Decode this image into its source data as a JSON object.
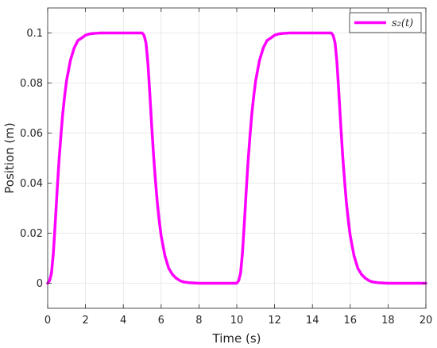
{
  "chart_data": {
    "type": "line",
    "title": "",
    "xlabel": "Time (s)",
    "ylabel": "Position (m)",
    "xlim": [
      0,
      20
    ],
    "ylim": [
      -0.01,
      0.11
    ],
    "xticks": [
      0,
      2,
      4,
      6,
      8,
      10,
      12,
      14,
      16,
      18,
      20
    ],
    "yticks": [
      0,
      0.02,
      0.04,
      0.06,
      0.08,
      0.1
    ],
    "ytick_labels": [
      "0",
      "0.02",
      "0.04",
      "0.06",
      "0.08",
      "0.1"
    ],
    "grid": true,
    "legend_position": "top-right",
    "series": [
      {
        "name": "s₂(t)",
        "color": "#ff00ff",
        "x": [
          0,
          0.1,
          0.2,
          0.3,
          0.4,
          0.5,
          0.6,
          0.7,
          0.8,
          0.9,
          1.0,
          1.2,
          1.4,
          1.6,
          1.8,
          2.0,
          2.2,
          2.4,
          2.6,
          2.8,
          3.0,
          3.5,
          4.0,
          4.5,
          5.0,
          5.1,
          5.2,
          5.3,
          5.4,
          5.5,
          5.6,
          5.7,
          5.8,
          5.9,
          6.0,
          6.2,
          6.4,
          6.6,
          6.8,
          7.0,
          7.2,
          7.5,
          8.0,
          9.0,
          10.0,
          10.1,
          10.2,
          10.3,
          10.4,
          10.5,
          10.6,
          10.7,
          10.8,
          10.9,
          11.0,
          11.2,
          11.4,
          11.6,
          11.8,
          12.0,
          12.2,
          12.4,
          12.6,
          12.8,
          13.0,
          13.5,
          14.0,
          14.5,
          15.0,
          15.1,
          15.2,
          15.3,
          15.4,
          15.5,
          15.6,
          15.7,
          15.8,
          15.9,
          16.0,
          16.2,
          16.4,
          16.6,
          16.8,
          17.0,
          17.2,
          17.5,
          18.0,
          19.0,
          20.0
        ],
        "y": [
          0,
          0.001,
          0.004,
          0.012,
          0.024,
          0.037,
          0.049,
          0.059,
          0.068,
          0.075,
          0.081,
          0.089,
          0.094,
          0.097,
          0.098,
          0.0991,
          0.0996,
          0.0998,
          0.0999,
          0.1,
          0.1,
          0.1,
          0.1,
          0.1,
          0.1,
          0.099,
          0.096,
          0.088,
          0.076,
          0.063,
          0.051,
          0.041,
          0.032,
          0.025,
          0.019,
          0.011,
          0.006,
          0.0035,
          0.002,
          0.001,
          0.0005,
          0.0002,
          0,
          0,
          0,
          0.001,
          0.004,
          0.012,
          0.024,
          0.037,
          0.049,
          0.059,
          0.068,
          0.075,
          0.081,
          0.089,
          0.094,
          0.097,
          0.098,
          0.0991,
          0.0996,
          0.0998,
          0.0999,
          0.1,
          0.1,
          0.1,
          0.1,
          0.1,
          0.1,
          0.099,
          0.096,
          0.088,
          0.076,
          0.063,
          0.051,
          0.041,
          0.032,
          0.025,
          0.019,
          0.011,
          0.006,
          0.0035,
          0.002,
          0.001,
          0.0005,
          0.0002,
          0,
          0,
          0
        ]
      }
    ]
  }
}
